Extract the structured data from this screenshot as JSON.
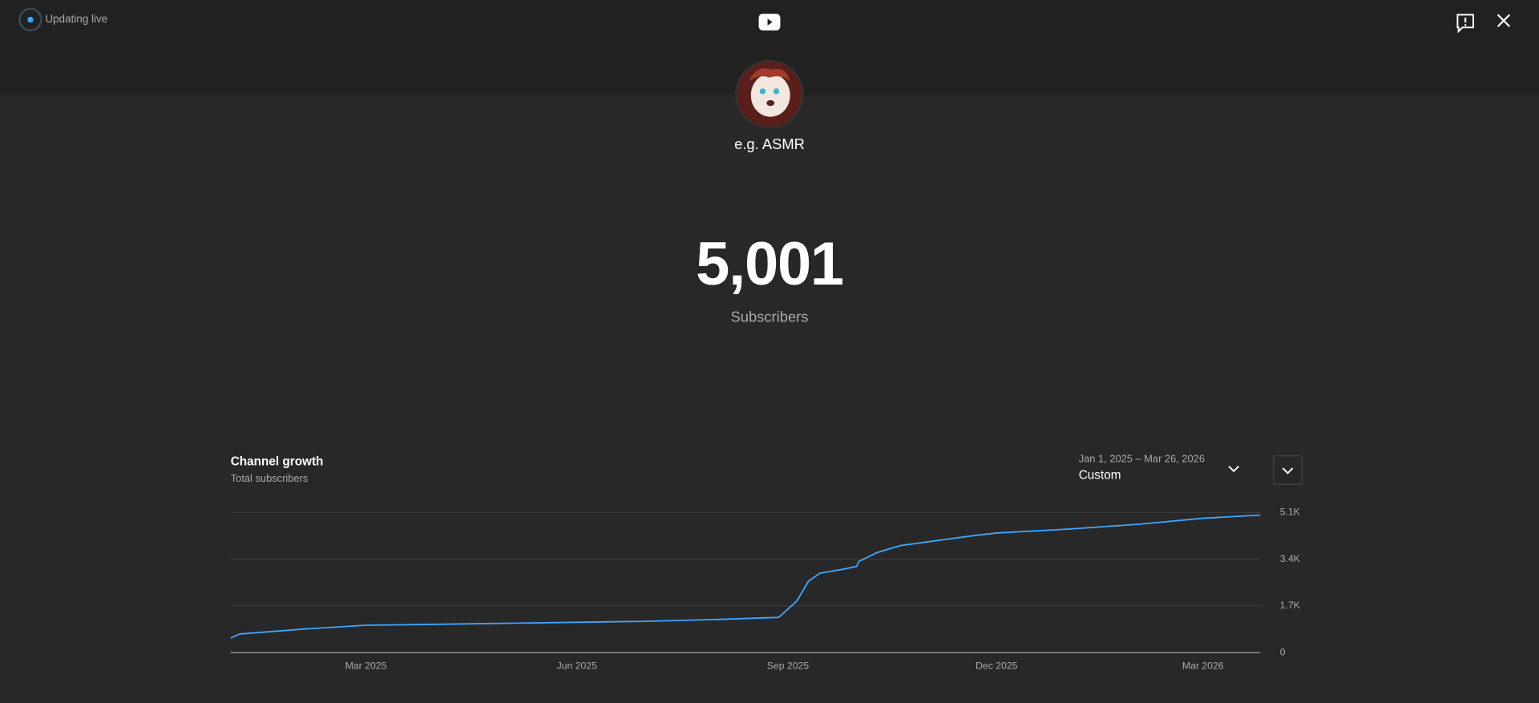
{
  "header": {
    "status": "Updating live"
  },
  "channel": {
    "name": "e.g. ASMR"
  },
  "counter": {
    "value": "5,001",
    "label": "Subscribers"
  },
  "chart_data": {
    "type": "line",
    "title": "Channel growth",
    "subtitle": "Total subscribers",
    "date_range": "Jan 1, 2025 – Mar 26, 2026",
    "period": "Custom",
    "x": [
      "2025-01-01",
      "2025-01-05",
      "2025-02-01",
      "2025-03-01",
      "2025-04-01",
      "2025-05-01",
      "2025-06-01",
      "2025-07-01",
      "2025-08-01",
      "2025-08-28",
      "2025-09-05",
      "2025-09-10",
      "2025-09-15",
      "2025-09-25",
      "2025-10-01",
      "2025-10-02",
      "2025-10-10",
      "2025-10-20",
      "2025-11-01",
      "2025-11-20",
      "2025-12-01",
      "2026-01-01",
      "2026-02-01",
      "2026-03-01",
      "2026-03-26"
    ],
    "series": [
      {
        "color": "#3ea6ff",
        "values": [
          535,
          680,
          855,
          1000,
          1035,
          1070,
          1105,
          1140,
          1210,
          1285,
          1890,
          2600,
          2890,
          3030,
          3140,
          3320,
          3640,
          3890,
          4030,
          4245,
          4350,
          4490,
          4670,
          4885,
          5000
        ]
      }
    ],
    "xlim": [
      "2025-01-01",
      "2026-03-26"
    ],
    "xticks": [
      {
        "value": "2025-03-01",
        "label": "Mar 2025"
      },
      {
        "value": "2025-06-01",
        "label": "Jun 2025"
      },
      {
        "value": "2025-09-01",
        "label": "Sep 2025"
      },
      {
        "value": "2025-12-01",
        "label": "Dec 2025"
      },
      {
        "value": "2026-03-01",
        "label": "Mar 2026"
      }
    ],
    "ylim": [
      0,
      5100
    ],
    "yticks": [
      0,
      {
        "value": 1700,
        "label": "1.7K"
      },
      {
        "value": 3400,
        "label": "3.4K"
      },
      {
        "value": 5100,
        "label": "5.1K"
      }
    ],
    "grid": true
  }
}
